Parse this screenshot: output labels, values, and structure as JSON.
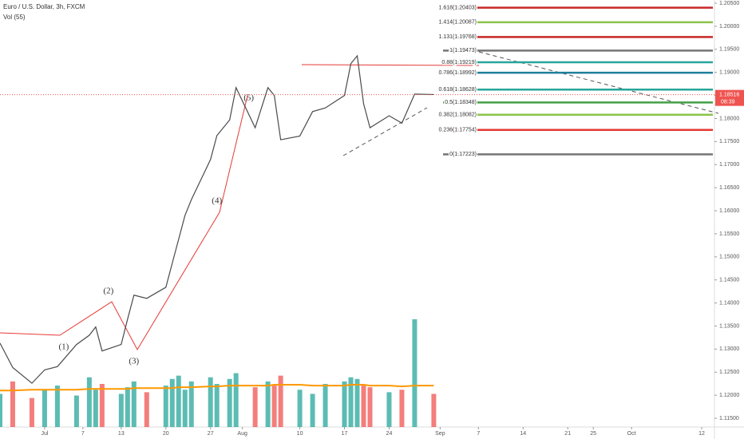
{
  "chart_data": {
    "type": "line",
    "title": "Euro / U.S. Dollar, 3h, FXCM",
    "indicator": "Vol (55)",
    "x": [
      "06-24",
      "06-26",
      "06-29",
      "07-01",
      "07-03",
      "07-06",
      "07-08",
      "07-09",
      "07-10",
      "07-13",
      "07-14",
      "07-15",
      "07-17",
      "07-20",
      "07-21",
      "07-22",
      "07-23",
      "07-24",
      "07-27",
      "07-28",
      "07-30",
      "07-31",
      "08-03",
      "08-05",
      "08-06",
      "08-07",
      "08-10",
      "08-12",
      "08-14",
      "08-17",
      "08-18",
      "08-19",
      "08-20",
      "08-21",
      "08-24",
      "08-26",
      "08-28",
      "08-31"
    ],
    "values": [
      1.1313,
      1.126,
      1.1226,
      1.1255,
      1.1262,
      1.131,
      1.133,
      1.1348,
      1.1296,
      1.131,
      1.1365,
      1.1417,
      1.141,
      1.1434,
      1.1486,
      1.1538,
      1.159,
      1.1624,
      1.1711,
      1.1763,
      1.1797,
      1.1867,
      1.178,
      1.1867,
      1.185,
      1.1754,
      1.1762,
      1.1815,
      1.1823,
      1.185,
      1.1919,
      1.1936,
      1.1832,
      1.178,
      1.1806,
      1.179,
      1.1853,
      1.1852
    ],
    "color": "#4a4a4a",
    "volume": [
      40,
      55,
      35,
      45,
      50,
      38,
      60,
      45,
      52,
      40,
      48,
      55,
      42,
      50,
      58,
      62,
      45,
      55,
      60,
      52,
      58,
      65,
      48,
      55,
      50,
      62,
      45,
      40,
      52,
      55,
      60,
      58,
      50,
      48,
      42,
      45,
      130,
      40
    ],
    "volume_ma": [
      44,
      44,
      45,
      45,
      45,
      45,
      46,
      46,
      46,
      46,
      46,
      47,
      47,
      47,
      47,
      48,
      48,
      48,
      49,
      49,
      50,
      50,
      50,
      50,
      51,
      51,
      51,
      50,
      50,
      50,
      51,
      51,
      51,
      50,
      50,
      49,
      50,
      50
    ],
    "up_color": "#26a69a",
    "down_color": "#ef5350",
    "ma_color": "#ff9800",
    "xlim": [
      "06-24",
      "10-14"
    ],
    "xticks": [
      {
        "value": "07-01",
        "label": "Jul"
      },
      {
        "value": "07-07",
        "label": "7"
      },
      {
        "value": "07-13",
        "label": "13"
      },
      {
        "value": "07-20",
        "label": "20"
      },
      {
        "value": "07-27",
        "label": "27"
      },
      {
        "value": "08-01",
        "label": "Aug"
      },
      {
        "value": "08-10",
        "label": "10"
      },
      {
        "value": "08-17",
        "label": "17"
      },
      {
        "value": "08-24",
        "label": "24"
      },
      {
        "value": "09-01",
        "label": "Sep"
      },
      {
        "value": "09-07",
        "label": "7"
      },
      {
        "value": "09-14",
        "label": "14"
      },
      {
        "value": "09-21",
        "label": "21"
      },
      {
        "value": "09-25",
        "label": "25"
      },
      {
        "value": "10-01",
        "label": "Oct"
      },
      {
        "value": "10-12",
        "label": "12"
      }
    ],
    "ylim": [
      1.1131,
      1.2057
    ],
    "yticks": [
      {
        "value": 1.115,
        "label": "1.11500"
      },
      {
        "value": 1.12,
        "label": "1.12000"
      },
      {
        "value": 1.125,
        "label": "1.12500"
      },
      {
        "value": 1.13,
        "label": "1.13000"
      },
      {
        "value": 1.135,
        "label": "1.13500"
      },
      {
        "value": 1.14,
        "label": "1.14000"
      },
      {
        "value": 1.145,
        "label": "1.14500"
      },
      {
        "value": 1.15,
        "label": "1.15000"
      },
      {
        "value": 1.155,
        "label": "1.15500"
      },
      {
        "value": 1.16,
        "label": "1.16000"
      },
      {
        "value": 1.165,
        "label": "1.16500"
      },
      {
        "value": 1.17,
        "label": "1.17000"
      },
      {
        "value": 1.175,
        "label": "1.17500"
      },
      {
        "value": 1.18,
        "label": "1.18000"
      },
      {
        "value": 1.185,
        "label": "1.18500"
      },
      {
        "value": 1.19,
        "label": "1.19000"
      },
      {
        "value": 1.195,
        "label": "1.19500"
      },
      {
        "value": 1.2,
        "label": "1.20000"
      },
      {
        "value": 1.205,
        "label": "1.20500"
      }
    ],
    "last_price": 1.18516,
    "countdown": "08:39",
    "fib_levels": [
      {
        "label": "1.618(1.20403)",
        "value": 1.20403,
        "color": "#c62828"
      },
      {
        "label": "1.414(1.20087)",
        "value": 1.20087,
        "color": "#8bc34a"
      },
      {
        "label": "1.131(1.19768)",
        "value": 1.19768,
        "color": "#c62828"
      },
      {
        "label": "1(1.19473)",
        "value": 1.19473,
        "color": "#757575"
      },
      {
        "label": "0.88(1.19219)",
        "value": 1.19219,
        "color": "#26a69a"
      },
      {
        "label": "0.786(1.18992)",
        "value": 1.18992,
        "color": "#1e7f9a"
      },
      {
        "label": "0.618(1.18628)",
        "value": 1.18628,
        "color": "#26a69a"
      },
      {
        "label": "0.5(1.18348)",
        "value": 1.18348,
        "color": "#43a047"
      },
      {
        "label": "0.382(1.18082)",
        "value": 1.18082,
        "color": "#8bc34a"
      },
      {
        "label": "0.236(1.17754)",
        "value": 1.17754,
        "color": "#e53935"
      },
      {
        "label": "0(1.17223)",
        "value": 1.17223,
        "color": "#757575"
      }
    ],
    "annotations": [
      {
        "text": "(1)",
        "x": "07-04",
        "y": 1.1304
      },
      {
        "text": "(2)",
        "x": "07-11",
        "y": 1.1425
      },
      {
        "text": "(3)",
        "x": "07-15",
        "y": 1.1273
      },
      {
        "text": "(4)",
        "x": "07-28",
        "y": 1.1621
      },
      {
        "text": "(5)",
        "x": "08-02",
        "y": 1.1844
      }
    ],
    "annotation_color": "#c62828"
  }
}
